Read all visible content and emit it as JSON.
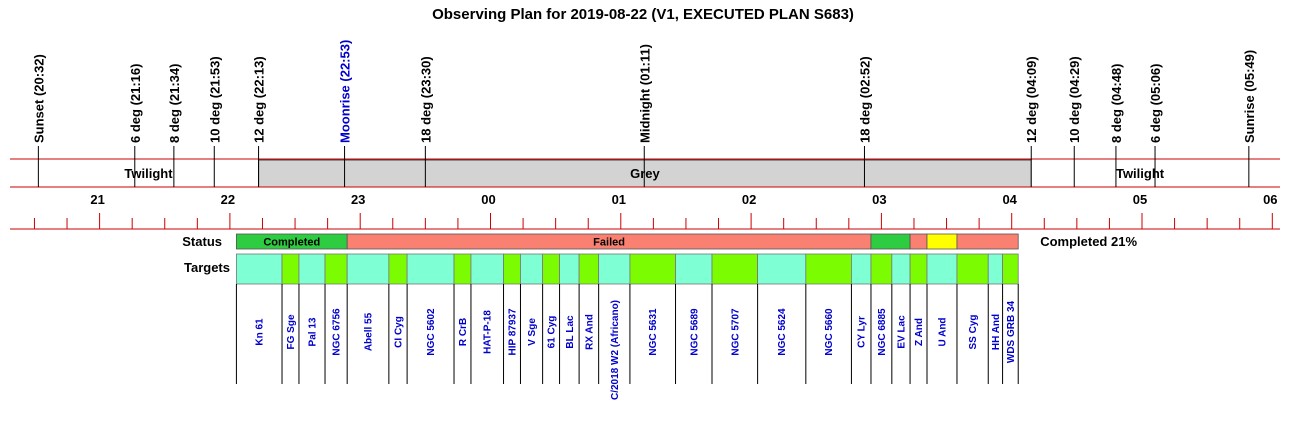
{
  "title": "Observing Plan for 2019-08-22 (V1, EXECUTED PLAN S683)",
  "colors": {
    "axis_red": "#cc0000",
    "grey_band": "#d3d3d3",
    "completed": "#2ecc40",
    "failed": "#fa8072",
    "partial": "#ffff00",
    "target_cyan": "#7fffd4",
    "target_green": "#7cfc00",
    "target_text": "#0000cc",
    "moonrise_text": "#0000cc"
  },
  "chart_data": {
    "type": "timeline",
    "x_unit": "hours since 20:00 local",
    "x_range": [
      20.0,
      30.2
    ],
    "hour_ticks": [
      {
        "x": 21,
        "label": "21"
      },
      {
        "x": 22,
        "label": "22"
      },
      {
        "x": 23,
        "label": "23"
      },
      {
        "x": 24,
        "label": "00"
      },
      {
        "x": 25,
        "label": "01"
      },
      {
        "x": 26,
        "label": "02"
      },
      {
        "x": 27,
        "label": "03"
      },
      {
        "x": 28,
        "label": "04"
      },
      {
        "x": 29,
        "label": "05"
      },
      {
        "x": 30,
        "label": "06"
      }
    ],
    "events": [
      {
        "x": 20.53,
        "label": "Sunset (20:32)"
      },
      {
        "x": 21.27,
        "label": "6 deg (21:16)"
      },
      {
        "x": 21.57,
        "label": "8 deg (21:34)"
      },
      {
        "x": 21.88,
        "label": "10 deg (21:53)"
      },
      {
        "x": 22.22,
        "label": "12 deg (22:13)"
      },
      {
        "x": 22.88,
        "label": "Moonrise (22:53)",
        "highlight": true
      },
      {
        "x": 23.5,
        "label": "18 deg (23:30)"
      },
      {
        "x": 25.18,
        "label": "Midnight (01:11)"
      },
      {
        "x": 26.87,
        "label": "18 deg (02:52)"
      },
      {
        "x": 28.15,
        "label": "12 deg (04:09)"
      },
      {
        "x": 28.48,
        "label": "10 deg (04:29)"
      },
      {
        "x": 28.8,
        "label": "8 deg (04:48)"
      },
      {
        "x": 29.1,
        "label": "6 deg (05:06)"
      },
      {
        "x": 29.82,
        "label": "Sunrise (05:49)"
      }
    ],
    "bands": [
      {
        "start": 20.53,
        "end": 22.22,
        "label": "Twilight",
        "kind": "twilight"
      },
      {
        "start": 22.22,
        "end": 28.15,
        "label": "Grey",
        "kind": "grey"
      },
      {
        "start": 28.15,
        "end": 29.82,
        "label": "Twilight",
        "kind": "twilight"
      }
    ],
    "status_label": "Status",
    "status_summary": "Completed 21%",
    "status": [
      {
        "start": 22.05,
        "end": 22.9,
        "state": "completed",
        "label": "Completed"
      },
      {
        "start": 22.9,
        "end": 26.92,
        "state": "failed",
        "label": "Failed"
      },
      {
        "start": 26.92,
        "end": 27.22,
        "state": "completed",
        "label": ""
      },
      {
        "start": 27.22,
        "end": 27.35,
        "state": "failed",
        "label": ""
      },
      {
        "start": 27.35,
        "end": 27.58,
        "state": "partial",
        "label": ""
      },
      {
        "start": 27.58,
        "end": 28.05,
        "state": "failed",
        "label": ""
      }
    ],
    "targets_label": "Targets",
    "targets": [
      {
        "start": 22.05,
        "end": 22.4,
        "name": "Kn 61",
        "color": "cyan"
      },
      {
        "start": 22.4,
        "end": 22.53,
        "name": "FG Sge",
        "color": "green"
      },
      {
        "start": 22.53,
        "end": 22.73,
        "name": "Pal 13",
        "color": "cyan"
      },
      {
        "start": 22.73,
        "end": 22.9,
        "name": "NGC 6756",
        "color": "green"
      },
      {
        "start": 22.9,
        "end": 23.22,
        "name": "Abell 55",
        "color": "cyan"
      },
      {
        "start": 23.22,
        "end": 23.36,
        "name": "CI Cyg",
        "color": "green"
      },
      {
        "start": 23.36,
        "end": 23.72,
        "name": "NGC 5602",
        "color": "cyan"
      },
      {
        "start": 23.72,
        "end": 23.85,
        "name": "R CrB",
        "color": "green"
      },
      {
        "start": 23.85,
        "end": 24.1,
        "name": "HAT-P-18",
        "color": "cyan"
      },
      {
        "start": 24.1,
        "end": 24.23,
        "name": "HIP 87937",
        "color": "green"
      },
      {
        "start": 24.23,
        "end": 24.4,
        "name": "V Sge",
        "color": "cyan"
      },
      {
        "start": 24.4,
        "end": 24.53,
        "name": "61 Cyg",
        "color": "green"
      },
      {
        "start": 24.53,
        "end": 24.68,
        "name": "BL Lac",
        "color": "cyan"
      },
      {
        "start": 24.68,
        "end": 24.83,
        "name": "RX And",
        "color": "green"
      },
      {
        "start": 24.83,
        "end": 25.07,
        "name": "C/2018 W2 (Africano)",
        "color": "cyan"
      },
      {
        "start": 25.07,
        "end": 25.42,
        "name": "NGC 5631",
        "color": "green"
      },
      {
        "start": 25.42,
        "end": 25.7,
        "name": "NGC 5689",
        "color": "cyan"
      },
      {
        "start": 25.7,
        "end": 26.05,
        "name": "NGC 5707",
        "color": "green"
      },
      {
        "start": 26.05,
        "end": 26.42,
        "name": "NGC 5624",
        "color": "cyan"
      },
      {
        "start": 26.42,
        "end": 26.77,
        "name": "NGC 5660",
        "color": "green"
      },
      {
        "start": 26.77,
        "end": 26.92,
        "name": "CY Lyr",
        "color": "cyan"
      },
      {
        "start": 26.92,
        "end": 27.08,
        "name": "NGC 6885",
        "color": "green"
      },
      {
        "start": 27.08,
        "end": 27.22,
        "name": "EV Lac",
        "color": "cyan"
      },
      {
        "start": 27.22,
        "end": 27.35,
        "name": "Z And",
        "color": "green"
      },
      {
        "start": 27.35,
        "end": 27.58,
        "name": "U And",
        "color": "cyan"
      },
      {
        "start": 27.58,
        "end": 27.82,
        "name": "SS Cyg",
        "color": "green"
      },
      {
        "start": 27.82,
        "end": 27.93,
        "name": "HH And",
        "color": "cyan"
      },
      {
        "start": 27.93,
        "end": 28.05,
        "name": "WDS GRB 34",
        "color": "green"
      }
    ]
  }
}
